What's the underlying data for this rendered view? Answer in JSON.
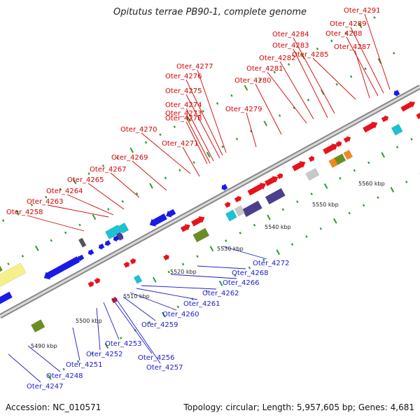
{
  "title": "Opitutus terrae PB90-1, complete genome",
  "footer": {
    "accession": "Accession: NC_010571",
    "topology": "Topology: circular; Length: 5,957,605 bp; Genes: 4,681"
  },
  "colors": {
    "forward_gene": "#e8121b",
    "reverse_gene": "#1a1ae6",
    "cyan_gene": "#19c3d2",
    "purple_gene": "#4b3f8f",
    "olive_gene": "#6b8e23",
    "orange_gene": "#f08a1c",
    "grey_gene": "#c8c8c8",
    "yellow_gene": "#f5f08c",
    "backbone": "#999999",
    "tick": "#2a9d2a",
    "top_label": "#d40000",
    "bottom_label": "#1a1acc"
  },
  "scale_labels": [
    "5490 kbp",
    "5500 kbp",
    "5510 kbp",
    "5520 kbp",
    "5530 kbp",
    "5540 kbp",
    "5550 kbp",
    "5560 kbp"
  ],
  "top_labels": [
    "Oter_4291",
    "Oter_4289",
    "Oter_4288",
    "Oter_4284",
    "Oter_4287",
    "Oter_4283",
    "Oter_4285",
    "Oter_4282",
    "Oter_4281",
    "Oter_4280",
    "Oter_4277",
    "Oter_4276",
    "Oter_4275",
    "Oter_4274",
    "Oter_4273",
    "Oter_4279",
    "Oter_4278",
    "Oter_4270",
    "Oter_4271",
    "Oter_4269",
    "Oter_4267",
    "Oter_4265",
    "Oter_4264",
    "Oter_4263",
    "Oter_4258"
  ],
  "bottom_labels": [
    "Oter_4272",
    "Oter_4268",
    "Oter_4266",
    "Oter_4262",
    "Oter_4261",
    "Oter_4260",
    "Oter_4259",
    "Oter_4253",
    "Oter_4252",
    "Oter_4256",
    "Oter_4257",
    "Oter_4251",
    "Oter_4248",
    "Oter_4247"
  ]
}
